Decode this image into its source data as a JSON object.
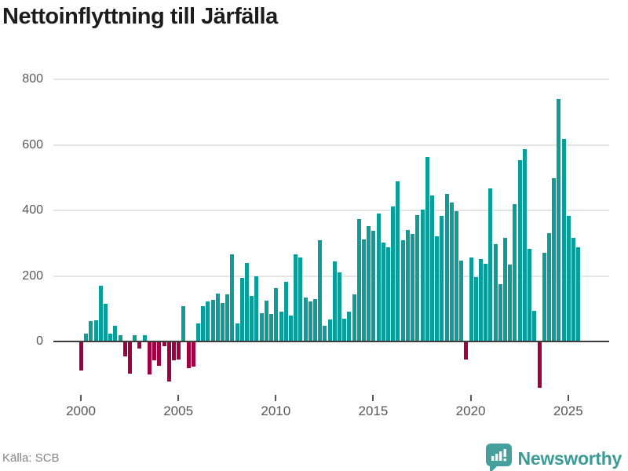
{
  "header": {
    "title": "Nettoinflyttning till Järfälla"
  },
  "footer": {
    "source_label": "Källa: SCB",
    "logo_text": "Newsworthy"
  },
  "colors": {
    "positive_bar": "#0a9d99",
    "negative_bar": "#a00041",
    "gridline": "#e4e4e4",
    "zero_line": "#3c3c3c",
    "axis_text": "#565656",
    "title_text": "#1c1c1c",
    "source_text": "#838383",
    "logo_teal": "#45a09d"
  },
  "chart_data": {
    "type": "bar",
    "title": "Nettoinflyttning till Järfälla",
    "xlabel": "",
    "ylabel": "",
    "x_unit": "quarter",
    "start": "2000-Q1",
    "end": "2025-Q3",
    "grid": "horizontal",
    "legend": "none",
    "ylim": [
      -200,
      870
    ],
    "y_tick_labels": [
      "0",
      "200",
      "400",
      "600",
      "800"
    ],
    "y_tick_values": [
      0,
      200,
      400,
      600,
      800
    ],
    "x_tick_labels": [
      "2000",
      "2005",
      "2010",
      "2015",
      "2020",
      "2025"
    ],
    "x_tick_years": [
      2000,
      2005,
      2010,
      2015,
      2020,
      2025
    ],
    "series_name": "Nettoinflyttning (kvartal)",
    "values_by_year": {
      "2000": [
        -87,
        25,
        62,
        64
      ],
      "2001": [
        171,
        114,
        25,
        48
      ],
      "2002": [
        18,
        -44,
        -95,
        20
      ],
      "2003": [
        -20,
        20,
        -99,
        -55
      ],
      "2004": [
        -71,
        -12,
        -119,
        -55
      ],
      "2005": [
        -52,
        107,
        -79,
        -75
      ],
      "2006": [
        55,
        107,
        121,
        127
      ],
      "2007": [
        147,
        117,
        143,
        267
      ],
      "2008": [
        55,
        193,
        240,
        140
      ],
      "2009": [
        198,
        87,
        125,
        83
      ],
      "2010": [
        164,
        90,
        181,
        79
      ],
      "2011": [
        267,
        256,
        133,
        123
      ],
      "2012": [
        130,
        310,
        48,
        66
      ],
      "2013": [
        244,
        210,
        69,
        90
      ],
      "2014": [
        143,
        373,
        312,
        351
      ],
      "2015": [
        337,
        390,
        302,
        288
      ],
      "2016": [
        411,
        488,
        310,
        339
      ],
      "2017": [
        328,
        385,
        402,
        562
      ],
      "2018": [
        445,
        320,
        383,
        451
      ],
      "2019": [
        425,
        397,
        246,
        -52
      ],
      "2020": [
        256,
        196,
        252,
        236
      ],
      "2021": [
        468,
        297,
        175,
        317
      ],
      "2022": [
        234,
        418,
        554,
        586
      ],
      "2023": [
        282,
        94,
        -139,
        270
      ],
      "2024": [
        331,
        498,
        740,
        617
      ],
      "2025": [
        383,
        317,
        288
      ]
    }
  }
}
